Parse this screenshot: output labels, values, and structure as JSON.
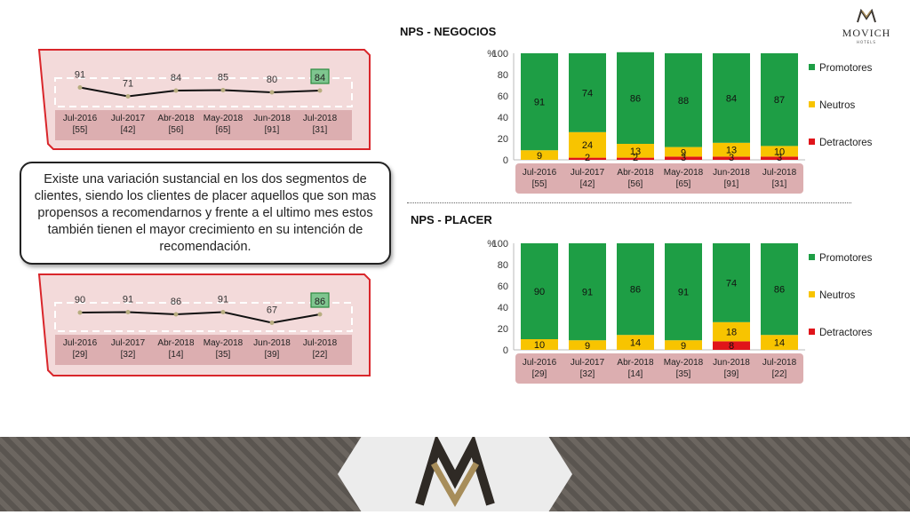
{
  "brand": {
    "name": "MOVICH",
    "sub": "HOTELS"
  },
  "titles": {
    "negocios": "NPS - NEGOCIOS",
    "placer": "NPS - PLACER"
  },
  "callout": "Existe una variación sustancial en los dos segmentos de clientes, siendo los clientes de placer aquellos que son mas propensos a recomendarnos y frente a el ultimo mes estos también tienen el mayor crecimiento en su intención de recomendación.",
  "colors": {
    "promotores": "#1e9e45",
    "neutros": "#f8c400",
    "detractores": "#e0141a",
    "panel_border": "#d9262b",
    "panel_fill": "#f3dada",
    "label_band": "#dcaeb0"
  },
  "chart_data": [
    {
      "id": "negocios-line",
      "type": "line",
      "categories": [
        "Jul-2016",
        "Jul-2017",
        "Abr-2018",
        "May-2018",
        "Jun-2018",
        "Jul-2018"
      ],
      "sample_sizes": [
        "[55]",
        "[42]",
        "[56]",
        "[65]",
        "[91]",
        "[31]"
      ],
      "values": [
        91,
        71,
        84,
        85,
        80,
        84
      ],
      "highlight_last": true
    },
    {
      "id": "placer-line",
      "type": "line",
      "categories": [
        "Jul-2016",
        "Jul-2017",
        "Abr-2018",
        "May-2018",
        "Jun-2018",
        "Jul-2018"
      ],
      "sample_sizes": [
        "[29]",
        "[32]",
        "[14]",
        "[35]",
        "[39]",
        "[22]"
      ],
      "values": [
        90,
        91,
        86,
        91,
        67,
        86
      ],
      "highlight_last": true
    },
    {
      "id": "negocios-bar",
      "type": "bar",
      "stacked": true,
      "ylabel": "%",
      "ylim": [
        0,
        100
      ],
      "yticks": [
        0,
        20,
        40,
        60,
        80,
        100
      ],
      "categories": [
        "Jul-2016",
        "Jul-2017",
        "Abr-2018",
        "May-2018",
        "Jun-2018",
        "Jul-2018"
      ],
      "sample_sizes": [
        "[55]",
        "[42]",
        "[56]",
        "[65]",
        "[91]",
        "[31]"
      ],
      "series": [
        {
          "name": "Detractores",
          "values": [
            0,
            2,
            2,
            3,
            3,
            3
          ]
        },
        {
          "name": "Neutros",
          "values": [
            9,
            24,
            13,
            9,
            13,
            10
          ]
        },
        {
          "name": "Promotores",
          "values": [
            91,
            74,
            86,
            88,
            84,
            87
          ]
        }
      ],
      "legend": "right"
    },
    {
      "id": "placer-bar",
      "type": "bar",
      "stacked": true,
      "ylabel": "%",
      "ylim": [
        0,
        100
      ],
      "yticks": [
        0,
        20,
        40,
        60,
        80,
        100
      ],
      "categories": [
        "Jul-2016",
        "Jul-2017",
        "Abr-2018",
        "May-2018",
        "Jun-2018",
        "Jul-2018"
      ],
      "sample_sizes": [
        "[29]",
        "[32]",
        "[14]",
        "[35]",
        "[39]",
        "[22]"
      ],
      "series": [
        {
          "name": "Detractores",
          "values": [
            0,
            0,
            0,
            0,
            8,
            0
          ]
        },
        {
          "name": "Neutros",
          "values": [
            10,
            9,
            14,
            9,
            18,
            14
          ]
        },
        {
          "name": "Promotores",
          "values": [
            90,
            91,
            86,
            91,
            74,
            86
          ]
        }
      ],
      "legend": "right"
    }
  ]
}
